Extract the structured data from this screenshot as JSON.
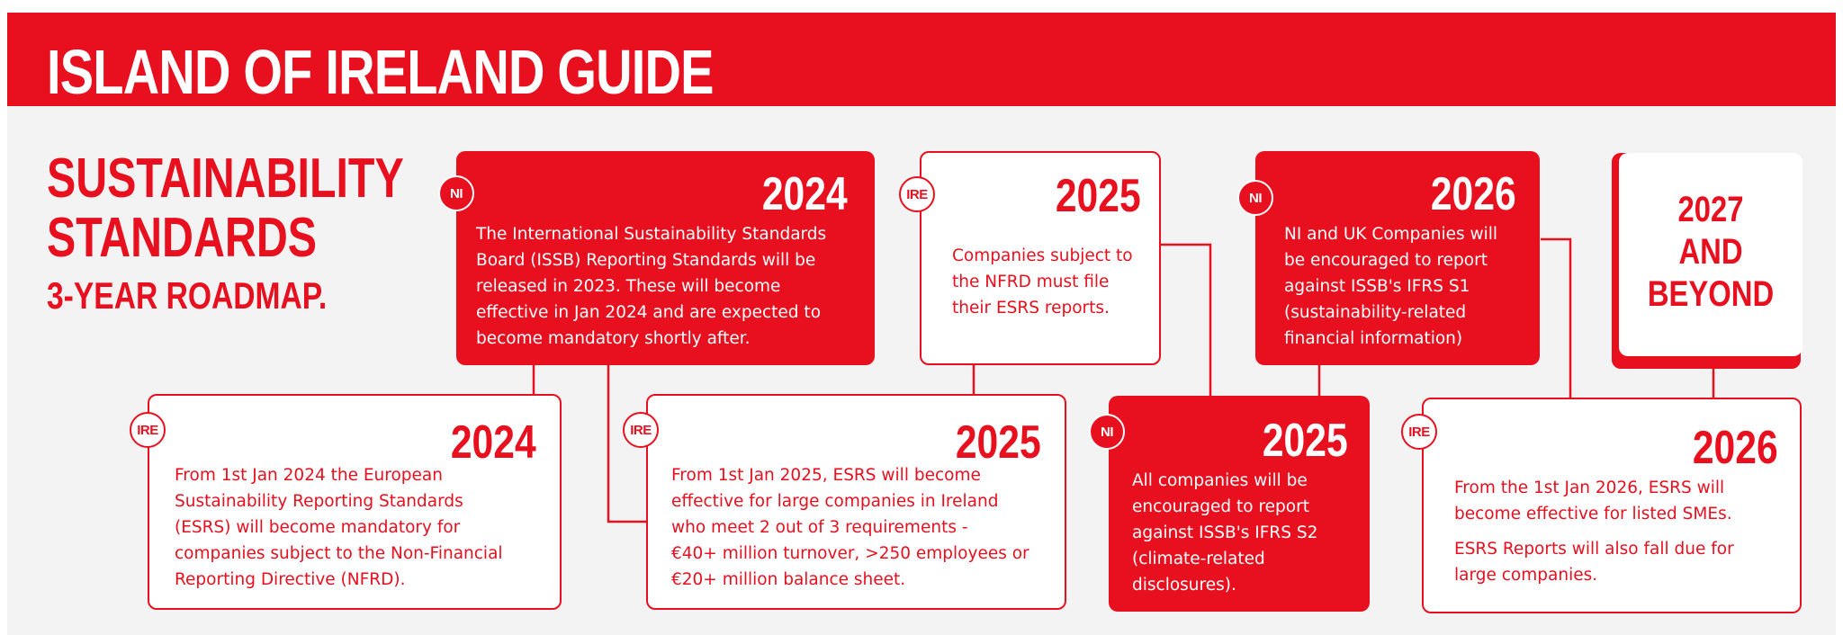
{
  "header": {
    "title": "ISLAND OF IRELAND GUIDE"
  },
  "intro": {
    "title_line1": "SUSTAINABILITY",
    "title_line2": "STANDARDS",
    "subtitle": "3-YEAR ROADMAP."
  },
  "colors": {
    "accent": "#e8101f",
    "background": "#f3f3f3",
    "card_white": "#ffffff"
  },
  "cards": {
    "ni_2024": {
      "badge": "NI",
      "year": "2024",
      "lines": [
        "The International Sustainability Standards",
        "Board (ISSB) Reporting Standards will be",
        "released in 2023. These will become",
        "effective in Jan 2024 and are expected to",
        "become mandatory shortly after."
      ]
    },
    "ire_2025_top": {
      "badge": "IRE",
      "year": "2025",
      "lines": [
        "Companies subject to",
        "the NFRD must file",
        "their ESRS reports."
      ]
    },
    "ni_2026": {
      "badge": "NI",
      "year": "2026",
      "lines": [
        "NI and UK Companies will",
        "be encouraged to report",
        "against ISSB's IFRS S1",
        "(sustainability-related",
        "financial information)"
      ]
    },
    "beyond": {
      "line1": "2027",
      "line2": "AND",
      "line3": "BEYOND"
    },
    "ire_2024": {
      "badge": "IRE",
      "year": "2024",
      "lines": [
        "From 1st Jan 2024 the European",
        "Sustainability Reporting Standards",
        "(ESRS) will become mandatory for",
        "companies subject to the Non-Financial",
        "Reporting Directive (NFRD)."
      ]
    },
    "ire_2025_bottom": {
      "badge": "IRE",
      "year": "2025",
      "lines": [
        "From 1st Jan 2025, ESRS will become",
        "effective for large companies in Ireland",
        "who meet 2 out of 3 requirements -",
        "€40+ million turnover, >250 employees or",
        "€20+ million balance sheet."
      ]
    },
    "ni_2025": {
      "badge": "NI",
      "year": "2025",
      "lines": [
        "All companies will be",
        "encouraged to report",
        "against ISSB's IFRS S2",
        "(climate-related",
        "disclosures)."
      ]
    },
    "ire_2026": {
      "badge": "IRE",
      "year": "2026",
      "para1": [
        "From the 1st Jan 2026, ESRS will",
        "become effective for listed SMEs."
      ],
      "para2": [
        "ESRS Reports will also fall due for",
        "large companies."
      ]
    }
  }
}
